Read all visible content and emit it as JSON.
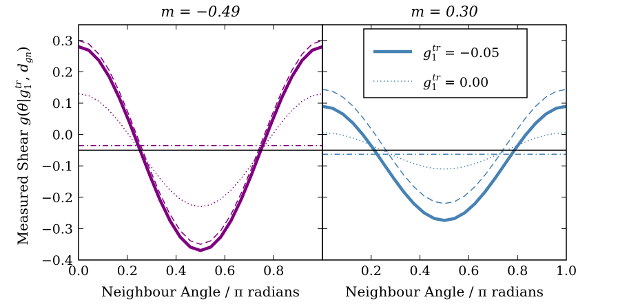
{
  "chart_data": {
    "type": "line",
    "ylabel": "Measured Shear g(θ|g₁^tr, d_gn)",
    "ylim": [
      -0.4,
      0.35
    ],
    "yticks": [
      -0.4,
      -0.3,
      -0.2,
      -0.1,
      0.0,
      0.1,
      0.2,
      0.3
    ],
    "ytick_labels": [
      "−0.4",
      "−0.3",
      "−0.2",
      "−0.1",
      "0.0",
      "0.1",
      "0.2",
      "0.3"
    ],
    "legend": {
      "location": "upper-right of right panel",
      "entries": [
        {
          "label": "g₁^tr = −0.05",
          "style": "solid"
        },
        {
          "label": "g₁^tr = 0.00",
          "style": "dotted"
        }
      ]
    },
    "panels": [
      {
        "title": "m = −0.49",
        "xlabel": "Neighbour Angle / π radians",
        "xlim": [
          0,
          1
        ],
        "xticks": [
          0.0,
          0.2,
          0.4,
          0.6,
          0.8
        ],
        "xtick_labels": [
          "0.0",
          "0.2",
          "0.4",
          "0.6",
          "0.8"
        ],
        "color": "#800080",
        "hline": -0.05,
        "series": [
          {
            "name": "solid",
            "style": "solid",
            "offset": -0.045,
            "amplitude": 0.325
          },
          {
            "name": "dashed",
            "style": "dashed",
            "offset": -0.025,
            "amplitude": 0.325
          },
          {
            "name": "dotted",
            "style": "dotted",
            "offset": -0.05,
            "amplitude": 0.18
          },
          {
            "name": "dashdot",
            "style": "dashdot",
            "offset": -0.035,
            "amplitude": 0.0
          }
        ]
      },
      {
        "title": "m = 0.30",
        "xlabel": "Neighbour Angle / π radians",
        "xlim": [
          0,
          1
        ],
        "xticks": [
          0.2,
          0.4,
          0.6,
          0.8,
          1.0
        ],
        "xtick_labels": [
          "0.2",
          "0.4",
          "0.6",
          "0.8",
          "1.0"
        ],
        "color": "#4682b4",
        "hline": -0.05,
        "series": [
          {
            "name": "solid",
            "style": "solid",
            "offset": -0.092,
            "amplitude": 0.182
          },
          {
            "name": "dashed",
            "style": "dashed",
            "offset": -0.038,
            "amplitude": 0.182
          },
          {
            "name": "dotted",
            "style": "dotted",
            "offset": -0.052,
            "amplitude": 0.058
          },
          {
            "name": "dashdot",
            "style": "dashdot",
            "offset": -0.063,
            "amplitude": 0.0
          }
        ]
      }
    ]
  }
}
